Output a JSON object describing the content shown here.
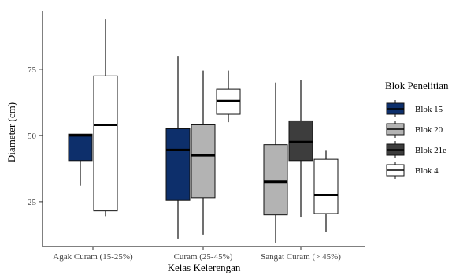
{
  "chart_data": {
    "type": "boxplot",
    "xlabel": "Kelas Kelerengan",
    "ylabel": "Diameter (cm)",
    "ylim": [
      8,
      97
    ],
    "yticks": [
      25,
      50,
      75
    ],
    "grid": false,
    "legend_position": "right",
    "legend": {
      "title": "Blok Penelitian"
    },
    "categories": [
      "Agak Curam (15-25%)",
      "Curam (25-45%)",
      "Sangat Curam (> 45%)"
    ],
    "series": [
      {
        "name": "Blok 15",
        "color": "#0d2f6b",
        "boxes": [
          {
            "category": 0,
            "min": 31,
            "q1": 40.5,
            "median": 50,
            "q3": 50.5,
            "max": 50.5
          },
          {
            "category": 1,
            "min": 11,
            "q1": 25.5,
            "median": 44.5,
            "q3": 52.5,
            "max": 80
          }
        ]
      },
      {
        "name": "Blok 20",
        "color": "#b3b3b3",
        "boxes": [
          {
            "category": 1,
            "min": 12.5,
            "q1": 26.5,
            "median": 42.5,
            "q3": 54,
            "max": 74.5
          },
          {
            "category": 2,
            "min": 9.5,
            "q1": 20,
            "median": 32.5,
            "q3": 46.5,
            "max": 70
          }
        ]
      },
      {
        "name": "Blok 21e",
        "color": "#3d3d3d",
        "boxes": [
          {
            "category": 2,
            "min": 19,
            "q1": 40.5,
            "median": 47.5,
            "q3": 55.5,
            "max": 71
          }
        ]
      },
      {
        "name": "Blok 4",
        "color": "#ffffff",
        "boxes": [
          {
            "category": 0,
            "min": 19.5,
            "q1": 21.5,
            "median": 54,
            "q3": 72.5,
            "max": 94
          },
          {
            "category": 1,
            "min": 55,
            "q1": 58,
            "median": 63,
            "q3": 67.5,
            "max": 74.5
          },
          {
            "category": 2,
            "min": 13.5,
            "q1": 20.5,
            "median": 27.5,
            "q3": 41,
            "max": 44.5
          }
        ]
      }
    ]
  }
}
